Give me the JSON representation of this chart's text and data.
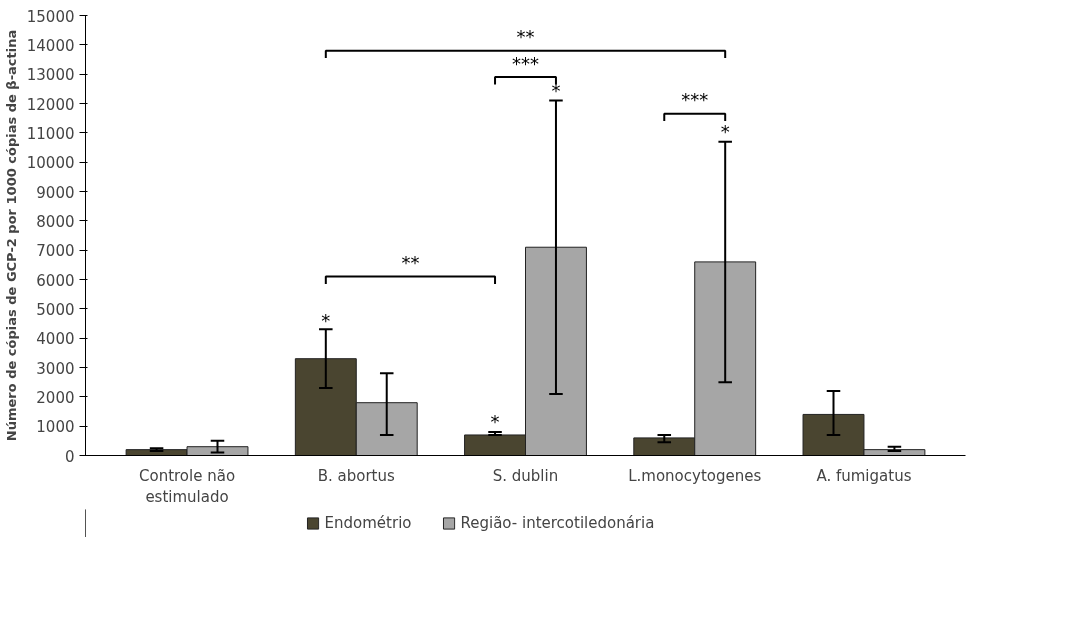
{
  "chart_data": {
    "type": "bar",
    "ylabel": "Número de cópias de GCP-2 por 1000 cópias de β-actina",
    "categories": [
      "Controle não estimulado",
      "B. abortus",
      "S. dublin",
      "L.monocytogenes",
      "A. fumigatus"
    ],
    "series": [
      {
        "name": "Endométrio",
        "color": "#4a4530",
        "values": [
          200,
          3300,
          700,
          600,
          1400
        ],
        "errors": [
          [
            150,
            250
          ],
          [
            2300,
            4300
          ],
          [
            700,
            800
          ],
          [
            450,
            700
          ],
          [
            700,
            2200
          ]
        ]
      },
      {
        "name": "Região- intercotiledonária",
        "color": "#a6a6a6",
        "values": [
          300,
          1800,
          7100,
          6600,
          200
        ],
        "errors": [
          [
            100,
            500
          ],
          [
            700,
            2800
          ],
          [
            2100,
            12100
          ],
          [
            2500,
            10700
          ],
          [
            150,
            300
          ]
        ]
      }
    ],
    "annotations": [
      "*",
      "*",
      "*",
      "*",
      "**",
      "**",
      "***",
      "***"
    ],
    "ylim": [
      0,
      15000
    ],
    "yticks": [
      0,
      1000,
      2000,
      3000,
      4000,
      5000,
      6000,
      7000,
      8000,
      9000,
      10000,
      11000,
      12000,
      13000,
      14000,
      15000
    ],
    "grid": false,
    "legend": "bottom"
  }
}
